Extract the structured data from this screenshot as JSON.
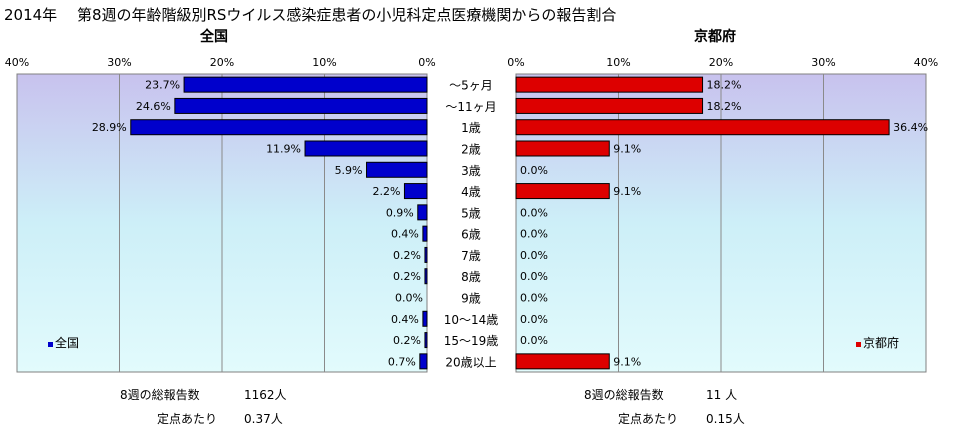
{
  "title": "2014年　 第8週の年齢階級別RSウイルス感染症患者の小児科定点医療機関からの報告割合",
  "colors": {
    "national": "#0000cc",
    "kyoto": "#dd0000"
  },
  "chart_data": {
    "type": "bar",
    "orientation": "horizontal",
    "categories": [
      "～5ヶ月",
      "～11ヶ月",
      "1歳",
      "2歳",
      "3歳",
      "4歳",
      "5歳",
      "6歳",
      "7歳",
      "8歳",
      "9歳",
      "10～14歳",
      "15～19歳",
      "20歳以上"
    ],
    "xlim": [
      0,
      40
    ],
    "grid": true,
    "panels": [
      {
        "title": "全国",
        "direction": "reversed",
        "ticks": [
          "40%",
          "30%",
          "20%",
          "10%",
          "0%"
        ],
        "legend": "全国",
        "legend_position": "bottom-left",
        "series": [
          {
            "name": "全国",
            "values": [
              23.7,
              24.6,
              28.9,
              11.9,
              5.9,
              2.2,
              0.9,
              0.4,
              0.2,
              0.2,
              0.0,
              0.4,
              0.2,
              0.7
            ],
            "labels": [
              "23.7%",
              "24.6%",
              "28.9%",
              "11.9%",
              "5.9%",
              "2.2%",
              "0.9%",
              "0.4%",
              "0.2%",
              "0.2%",
              "0.0%",
              "0.4%",
              "0.2%",
              "0.7%"
            ]
          }
        ],
        "footer": {
          "reports_label": "8週の総報告数",
          "reports_value": "1162人",
          "per_label": "定点あたり",
          "per_value": "0.37人"
        }
      },
      {
        "title": "京都府",
        "direction": "normal",
        "ticks": [
          "0%",
          "10%",
          "20%",
          "30%",
          "40%"
        ],
        "legend": "京都府",
        "legend_position": "bottom-right",
        "series": [
          {
            "name": "京都府",
            "values": [
              18.2,
              18.2,
              36.4,
              9.1,
              0.0,
              9.1,
              0.0,
              0.0,
              0.0,
              0.0,
              0.0,
              0.0,
              0.0,
              9.1
            ],
            "labels": [
              "18.2%",
              "18.2%",
              "36.4%",
              "9.1%",
              "0.0%",
              "9.1%",
              "0.0%",
              "0.0%",
              "0.0%",
              "0.0%",
              "0.0%",
              "0.0%",
              "0.0%",
              "9.1%"
            ]
          }
        ],
        "footer": {
          "reports_label": "8週の総報告数",
          "reports_value": "11 人",
          "per_label": "定点あたり",
          "per_value": "0.15人"
        }
      }
    ]
  }
}
